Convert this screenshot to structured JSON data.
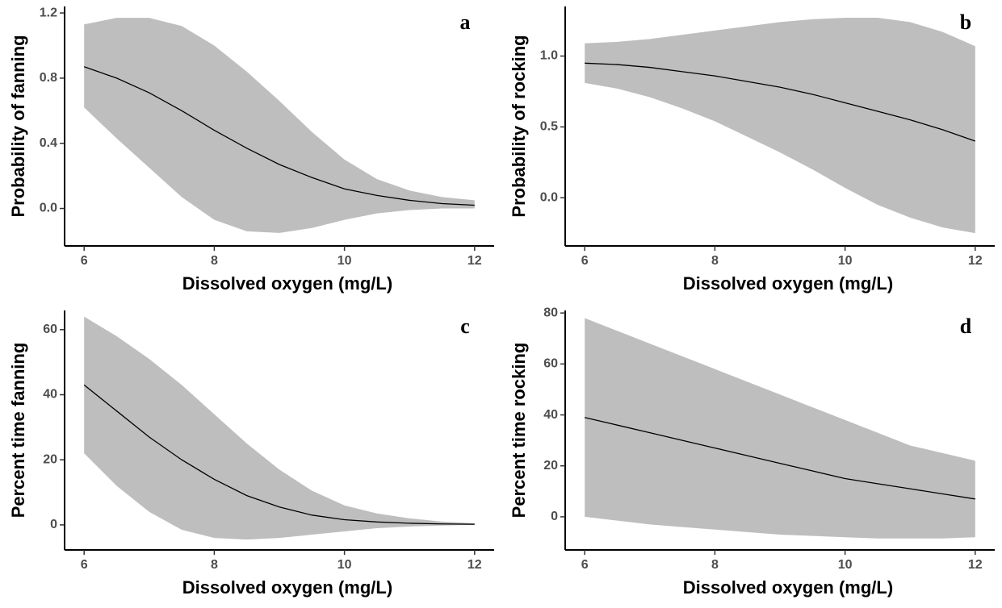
{
  "chart_data": [
    {
      "type": "line",
      "panel_label": "a",
      "xlabel": "Dissolved oxygen (mg/L)",
      "ylabel": "Probability of fanning",
      "x": [
        6,
        6.5,
        7,
        7.5,
        8,
        8.5,
        9,
        9.5,
        10,
        10.5,
        11,
        11.5,
        12
      ],
      "values": [
        0.87,
        0.8,
        0.71,
        0.6,
        0.48,
        0.37,
        0.27,
        0.19,
        0.12,
        0.08,
        0.05,
        0.03,
        0.02
      ],
      "upper": [
        1.13,
        1.17,
        1.17,
        1.12,
        1.0,
        0.84,
        0.66,
        0.47,
        0.3,
        0.18,
        0.11,
        0.07,
        0.05
      ],
      "lower": [
        0.62,
        0.43,
        0.25,
        0.07,
        -0.07,
        -0.14,
        -0.15,
        -0.12,
        -0.07,
        -0.03,
        -0.01,
        0.0,
        0.0
      ],
      "color": "#000000",
      "band_color": "#bebebe",
      "xlim": [
        5.7,
        12.3
      ],
      "xticks": [
        6,
        8,
        10,
        12
      ],
      "ylim": [
        -0.23,
        1.24
      ],
      "yticks": [
        {
          "value": 0,
          "label": "0.0"
        },
        0.4,
        0.8,
        1.2
      ]
    },
    {
      "type": "line",
      "panel_label": "b",
      "xlabel": "Dissolved oxygen (mg/L)",
      "ylabel": "Probability of rocking",
      "x": [
        6,
        6.5,
        7,
        7.5,
        8,
        8.5,
        9,
        9.5,
        10,
        10.5,
        11,
        11.5,
        12
      ],
      "values": [
        0.95,
        0.94,
        0.92,
        0.89,
        0.86,
        0.82,
        0.78,
        0.73,
        0.67,
        0.61,
        0.55,
        0.48,
        0.4
      ],
      "upper": [
        1.09,
        1.1,
        1.12,
        1.15,
        1.18,
        1.21,
        1.24,
        1.26,
        1.27,
        1.27,
        1.24,
        1.17,
        1.07
      ],
      "lower": [
        0.81,
        0.77,
        0.71,
        0.63,
        0.54,
        0.43,
        0.32,
        0.2,
        0.07,
        -0.05,
        -0.14,
        -0.21,
        -0.25
      ],
      "color": "#000000",
      "band_color": "#bebebe",
      "xlim": [
        5.7,
        12.3
      ],
      "xticks": [
        6,
        8,
        10,
        12
      ],
      "ylim": [
        -0.34,
        1.35
      ],
      "yticks": [
        {
          "value": 0,
          "label": "0.0"
        },
        0.5,
        {
          "value": 1,
          "label": "1.0"
        }
      ]
    },
    {
      "type": "line",
      "panel_label": "c",
      "xlabel": "Dissolved oxygen (mg/L)",
      "ylabel": "Percent time fanning",
      "x": [
        6,
        6.5,
        7,
        7.5,
        8,
        8.5,
        9,
        9.5,
        10,
        10.5,
        11,
        11.5,
        12
      ],
      "values": [
        43,
        35,
        27,
        20,
        14,
        9,
        5.5,
        3,
        1.6,
        0.9,
        0.5,
        0.3,
        0.2
      ],
      "upper": [
        64,
        58,
        51,
        43,
        34,
        25,
        17,
        10.5,
        6,
        3.5,
        2,
        1,
        0.5
      ],
      "lower": [
        22,
        12,
        4,
        -1.5,
        -4,
        -4.5,
        -4,
        -3,
        -2,
        -1,
        -0.5,
        -0.2,
        0
      ],
      "color": "#000000",
      "band_color": "#bebebe",
      "xlim": [
        5.7,
        12.3
      ],
      "xticks": [
        6,
        8,
        10,
        12
      ],
      "ylim": [
        -7.7,
        65.9
      ],
      "yticks": [
        0,
        20,
        40,
        60
      ]
    },
    {
      "type": "line",
      "panel_label": "d",
      "xlabel": "Dissolved oxygen (mg/L)",
      "ylabel": "Percent time rocking",
      "x": [
        6,
        6.5,
        7,
        7.5,
        8,
        8.5,
        9,
        9.5,
        10,
        10.5,
        11,
        11.5,
        12
      ],
      "values": [
        39,
        36,
        33,
        30,
        27,
        24,
        21,
        18,
        15,
        13,
        11,
        9,
        7
      ],
      "upper": [
        78,
        73,
        68,
        63,
        58,
        53,
        48,
        43,
        38,
        33,
        28,
        25,
        22
      ],
      "lower": [
        0,
        -1.5,
        -3,
        -4,
        -5,
        -6,
        -7,
        -7.5,
        -8,
        -8.5,
        -8.5,
        -8.5,
        -8
      ],
      "color": "#000000",
      "band_color": "#bebebe",
      "xlim": [
        5.7,
        12.3
      ],
      "xticks": [
        6,
        8,
        10,
        12
      ],
      "ylim": [
        -13,
        81
      ],
      "yticks": [
        0,
        20,
        40,
        60,
        80
      ]
    }
  ]
}
